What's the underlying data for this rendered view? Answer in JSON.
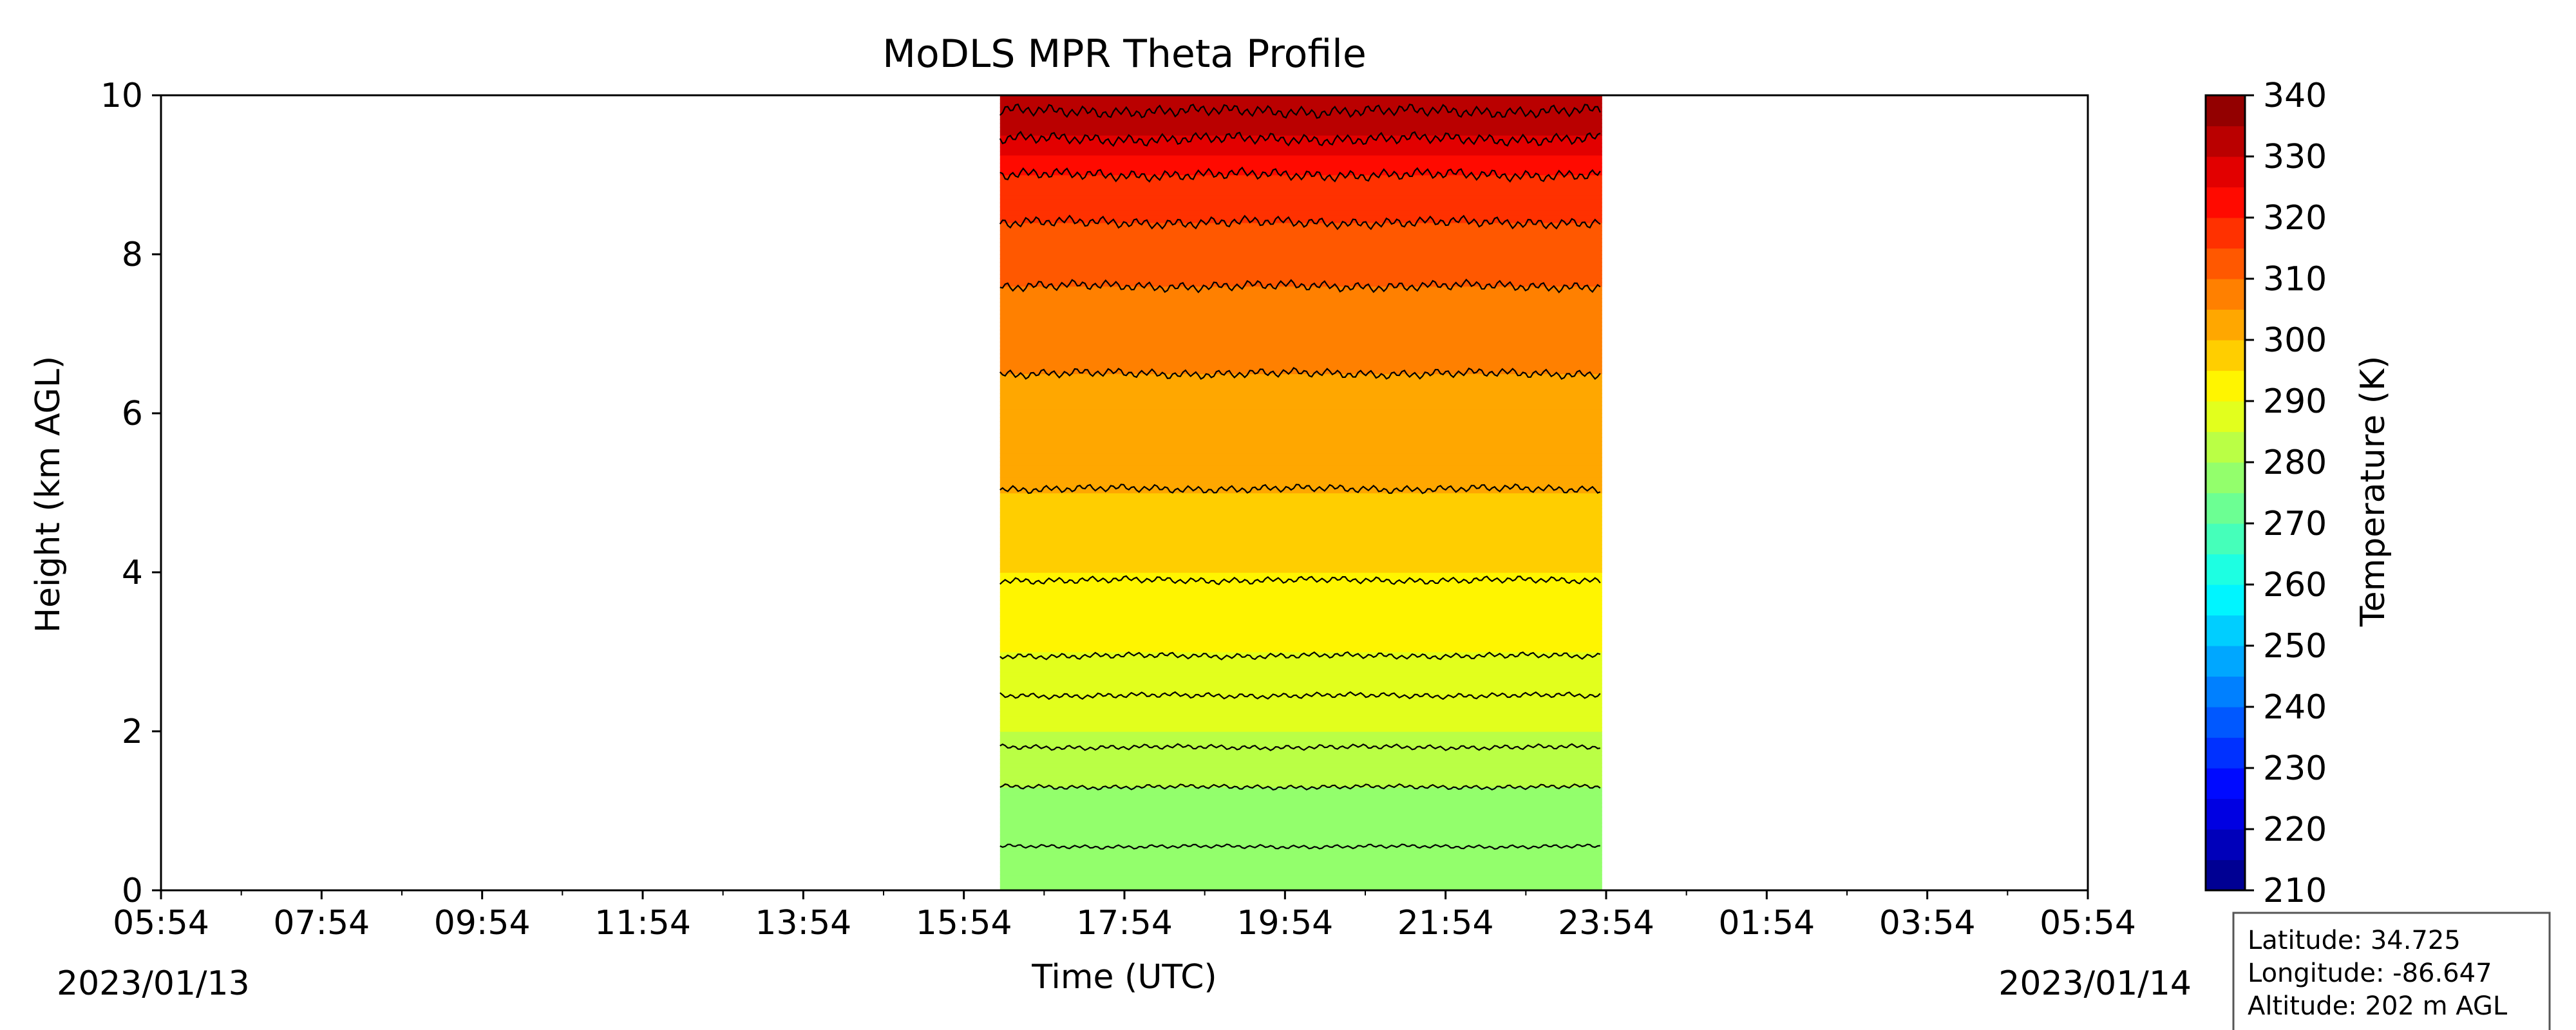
{
  "chart_data": {
    "type": "heatmap",
    "title": "MoDLS MPR Theta Profile",
    "xlabel": "Time (UTC)",
    "ylabel": "Height (km AGL)",
    "ylim": [
      0,
      10
    ],
    "yticks": [
      0,
      2,
      4,
      6,
      8,
      10
    ],
    "x_range_hours_utc": [
      5.9,
      29.9
    ],
    "xtick_hours": [
      5.9,
      7.9,
      9.9,
      11.9,
      13.9,
      15.9,
      17.9,
      19.9,
      21.9,
      23.9,
      25.9,
      27.9,
      29.9
    ],
    "xtick_labels": [
      "05:54",
      "07:54",
      "09:54",
      "11:54",
      "13:54",
      "15:54",
      "17:54",
      "19:54",
      "21:54",
      "23:54",
      "01:54",
      "03:54",
      "05:54"
    ],
    "date_start": "2023/01/13",
    "date_end": "2023/01/14",
    "data_time_range_hours_utc": [
      16.35,
      23.85
    ],
    "contour_levels_km": [
      0.55,
      1.3,
      1.8,
      2.45,
      2.95,
      3.9,
      5.05,
      6.5,
      7.6,
      8.4,
      9.0,
      9.45,
      9.8
    ],
    "profile_km_vs_kelvin": [
      [
        0,
        280
      ],
      [
        0.6,
        275
      ],
      [
        1.3,
        280
      ],
      [
        2.0,
        285
      ],
      [
        3.0,
        290
      ],
      [
        4.0,
        295
      ],
      [
        5.0,
        300
      ],
      [
        6.5,
        305
      ],
      [
        7.6,
        310
      ],
      [
        8.4,
        315
      ],
      [
        9.0,
        320
      ],
      [
        9.5,
        330
      ],
      [
        10.0,
        335
      ]
    ],
    "colorbar": {
      "label": "Temperature (K)",
      "min": 210,
      "max": 340,
      "step": 5,
      "ticks": [
        210,
        220,
        230,
        240,
        250,
        260,
        270,
        280,
        290,
        300,
        310,
        320,
        330,
        340
      ],
      "colormap": "jet"
    },
    "grid": false
  },
  "station": {
    "latitude": "Latitude: 34.725",
    "longitude": "Longitude: -86.647",
    "altitude": "Altitude: 202 m AGL"
  }
}
